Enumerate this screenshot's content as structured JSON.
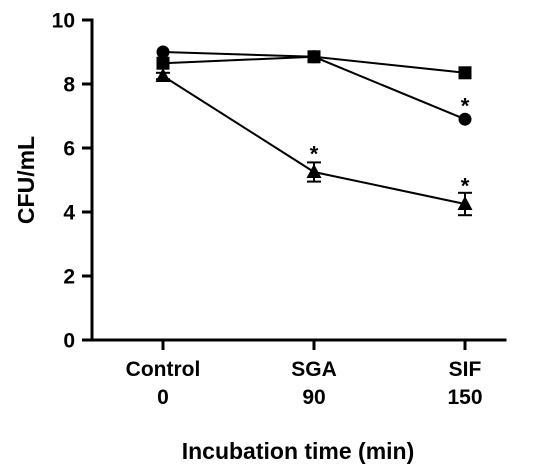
{
  "chart_data": {
    "type": "line",
    "title": "",
    "xlabel": "Incubation time (min)",
    "ylabel": "CFU/mL",
    "ylim": [
      0,
      10
    ],
    "yticks": [
      0,
      2,
      4,
      6,
      8,
      10
    ],
    "categories": [
      {
        "line1": "Control",
        "line2": "0"
      },
      {
        "line1": "SGA",
        "line2": "90"
      },
      {
        "line1": "SIF",
        "line2": "150"
      }
    ],
    "grid": false,
    "legend": "none",
    "series": [
      {
        "marker": "circle",
        "values": [
          9.0,
          8.85,
          6.9
        ],
        "errors": [
          0,
          0,
          0
        ],
        "color": "#000000"
      },
      {
        "marker": "square",
        "values": [
          8.65,
          8.85,
          8.35
        ],
        "errors": [
          0,
          0,
          0
        ],
        "color": "#000000"
      },
      {
        "marker": "triangle",
        "values": [
          8.25,
          5.25,
          4.25
        ],
        "errors": [
          0.1,
          0.3,
          0.35
        ],
        "color": "#000000"
      }
    ],
    "annotations": [
      {
        "text": "*",
        "category": 2,
        "y": 7.45
      },
      {
        "text": "*",
        "category": 1,
        "y": 5.95
      },
      {
        "text": "*",
        "category": 2,
        "y": 4.95
      }
    ]
  }
}
